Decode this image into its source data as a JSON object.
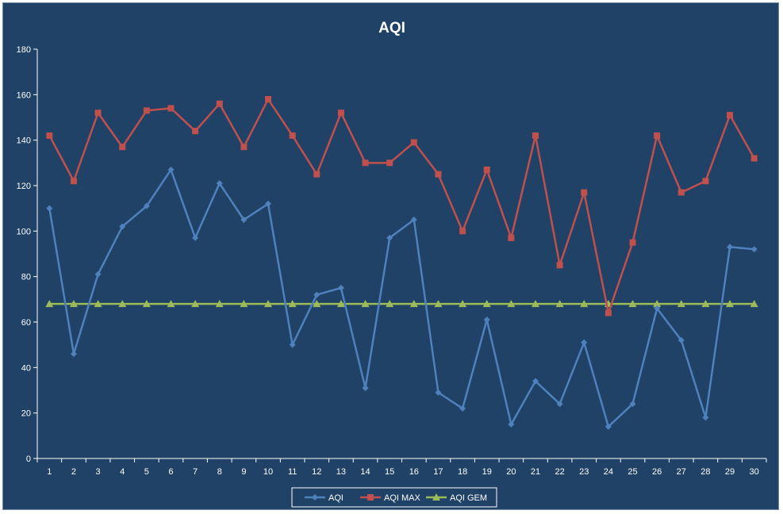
{
  "chart_data": {
    "type": "line",
    "title": "AQI",
    "xlabel": "",
    "ylabel": "",
    "x": [
      1,
      2,
      3,
      4,
      5,
      6,
      7,
      8,
      9,
      10,
      11,
      12,
      13,
      14,
      15,
      16,
      17,
      18,
      19,
      20,
      21,
      22,
      23,
      24,
      25,
      26,
      27,
      28,
      29,
      30
    ],
    "ylim": [
      0,
      180
    ],
    "yticks": [
      0,
      20,
      40,
      60,
      80,
      100,
      120,
      140,
      160,
      180
    ],
    "grid": false,
    "legend_position": "bottom",
    "series": [
      {
        "name": "AQI",
        "color": "#4f81bd",
        "marker": "diamond",
        "values": [
          110,
          46,
          81,
          102,
          111,
          127,
          97,
          121,
          105,
          112,
          50,
          72,
          75,
          31,
          97,
          105,
          29,
          22,
          61,
          15,
          34,
          24,
          51,
          14,
          24,
          66,
          52,
          18,
          93,
          92
        ]
      },
      {
        "name": "AQI MAX",
        "color": "#c0504d",
        "marker": "square",
        "values": [
          142,
          122,
          152,
          137,
          153,
          154,
          144,
          156,
          137,
          158,
          142,
          125,
          152,
          130,
          130,
          139,
          125,
          100,
          127,
          97,
          142,
          85,
          117,
          64,
          95,
          142,
          117,
          122,
          151,
          132
        ]
      },
      {
        "name": "AQI GEM",
        "color": "#9bbb59",
        "marker": "triangle",
        "values": [
          68,
          68,
          68,
          68,
          68,
          68,
          68,
          68,
          68,
          68,
          68,
          68,
          68,
          68,
          68,
          68,
          68,
          68,
          68,
          68,
          68,
          68,
          68,
          68,
          68,
          68,
          68,
          68,
          68,
          68
        ]
      }
    ]
  }
}
